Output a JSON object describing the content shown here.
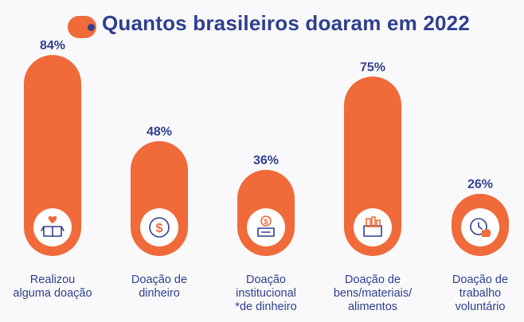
{
  "title": "Quantos brasileiros doaram em 2022",
  "colors": {
    "bar": "#f06a3a",
    "text": "#2f3f8f",
    "icon_bg": "#ffffff",
    "background": "#f9f9fb"
  },
  "chart_data": {
    "type": "bar",
    "title": "Quantos brasileiros doaram em 2022",
    "categories": [
      "Realizou\nalguma doação",
      "Doação de\ndinheiro",
      "Doação\ninstitucional\n*de dinheiro",
      "Doação de\nbens/materiais/\nalimentos",
      "Doação de\ntrabalho\nvoluntário"
    ],
    "values": [
      84,
      48,
      36,
      75,
      26
    ],
    "value_labels": [
      "84%",
      "48%",
      "36%",
      "75%",
      "26%"
    ],
    "icons": [
      "gift-box-heart-icon",
      "dollar-coin-icon",
      "donation-box-icon",
      "supplies-box-icon",
      "clock-hand-icon"
    ],
    "ylim": [
      0,
      100
    ],
    "grid": false,
    "legend": "none"
  }
}
